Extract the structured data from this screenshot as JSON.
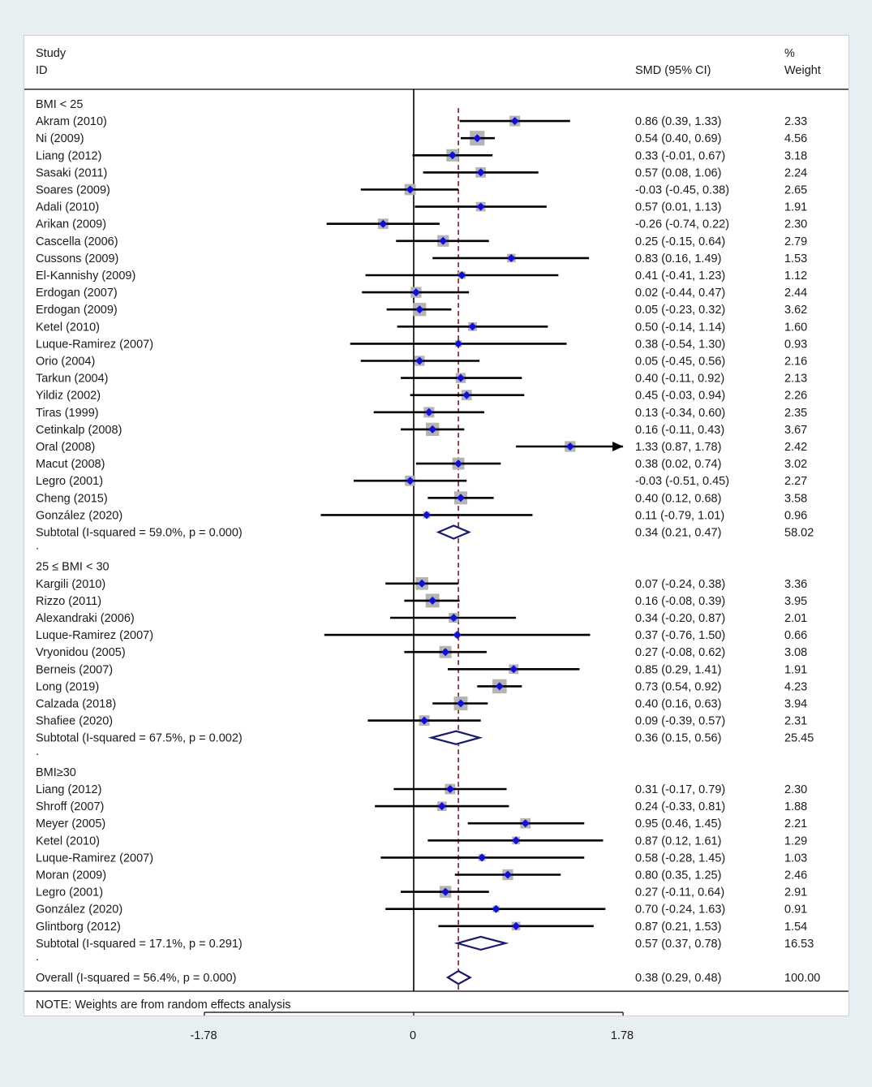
{
  "header": {
    "study_line1": "Study",
    "study_line2": "ID",
    "smd": "SMD (95% CI)",
    "weight_line1": "%",
    "weight_line2": "Weight"
  },
  "note": "NOTE: Weights are from random effects analysis",
  "colors": {
    "marker": "#1010d8",
    "box": "#b4b4b4",
    "diamond": "#1a1a6e",
    "reference": "#8b1a1a",
    "line": "#000000"
  },
  "chart_data": {
    "type": "forest",
    "measure": "SMD",
    "xlim": [
      -1.78,
      1.78
    ],
    "xticks": [
      -1.78,
      0,
      1.78
    ],
    "xtick_labels": [
      "-1.78",
      "0",
      "1.78"
    ],
    "overall_effect": 0.38,
    "groups": [
      {
        "label": "BMI  < 25",
        "studies": [
          {
            "name": "Akram (2010)",
            "est": 0.86,
            "lo": 0.39,
            "hi": 1.33,
            "text": "0.86 (0.39, 1.33)",
            "weight": "2.33"
          },
          {
            "name": "Ni (2009)",
            "est": 0.54,
            "lo": 0.4,
            "hi": 0.69,
            "text": "0.54 (0.40, 0.69)",
            "weight": "4.56"
          },
          {
            "name": "Liang (2012)",
            "est": 0.33,
            "lo": -0.01,
            "hi": 0.67,
            "text": "0.33 (-0.01, 0.67)",
            "weight": "3.18"
          },
          {
            "name": "Sasaki (2011)",
            "est": 0.57,
            "lo": 0.08,
            "hi": 1.06,
            "text": "0.57 (0.08, 1.06)",
            "weight": "2.24"
          },
          {
            "name": "Soares (2009)",
            "est": -0.03,
            "lo": -0.45,
            "hi": 0.38,
            "text": "-0.03 (-0.45, 0.38)",
            "weight": "2.65"
          },
          {
            "name": "Adali (2010)",
            "est": 0.57,
            "lo": 0.01,
            "hi": 1.13,
            "text": "0.57 (0.01, 1.13)",
            "weight": "1.91"
          },
          {
            "name": "Arikan (2009)",
            "est": -0.26,
            "lo": -0.74,
            "hi": 0.22,
            "text": "-0.26 (-0.74, 0.22)",
            "weight": "2.30"
          },
          {
            "name": "Cascella (2006)",
            "est": 0.25,
            "lo": -0.15,
            "hi": 0.64,
            "text": "0.25 (-0.15, 0.64)",
            "weight": "2.79"
          },
          {
            "name": "Cussons (2009)",
            "est": 0.83,
            "lo": 0.16,
            "hi": 1.49,
            "text": "0.83 (0.16, 1.49)",
            "weight": "1.53"
          },
          {
            "name": "El-Kannishy (2009)",
            "est": 0.41,
            "lo": -0.41,
            "hi": 1.23,
            "text": "0.41 (-0.41, 1.23)",
            "weight": "1.12"
          },
          {
            "name": "Erdogan (2007)",
            "est": 0.02,
            "lo": -0.44,
            "hi": 0.47,
            "text": "0.02 (-0.44, 0.47)",
            "weight": "2.44"
          },
          {
            "name": "Erdogan (2009)",
            "est": 0.05,
            "lo": -0.23,
            "hi": 0.32,
            "text": "0.05 (-0.23, 0.32)",
            "weight": "3.62"
          },
          {
            "name": "Ketel (2010)",
            "est": 0.5,
            "lo": -0.14,
            "hi": 1.14,
            "text": "0.50 (-0.14, 1.14)",
            "weight": "1.60"
          },
          {
            "name": "Luque-Ramirez (2007)",
            "est": 0.38,
            "lo": -0.54,
            "hi": 1.3,
            "text": "0.38 (-0.54, 1.30)",
            "weight": "0.93"
          },
          {
            "name": "Orio (2004)",
            "est": 0.05,
            "lo": -0.45,
            "hi": 0.56,
            "text": "0.05 (-0.45, 0.56)",
            "weight": "2.16"
          },
          {
            "name": "Tarkun (2004)",
            "est": 0.4,
            "lo": -0.11,
            "hi": 0.92,
            "text": "0.40 (-0.11, 0.92)",
            "weight": "2.13"
          },
          {
            "name": "Yildiz (2002)",
            "est": 0.45,
            "lo": -0.03,
            "hi": 0.94,
            "text": "0.45 (-0.03, 0.94)",
            "weight": "2.26"
          },
          {
            "name": "Tiras (1999)",
            "est": 0.13,
            "lo": -0.34,
            "hi": 0.6,
            "text": "0.13 (-0.34, 0.60)",
            "weight": "2.35"
          },
          {
            "name": "Cetinkalp (2008)",
            "est": 0.16,
            "lo": -0.11,
            "hi": 0.43,
            "text": "0.16 (-0.11, 0.43)",
            "weight": "3.67"
          },
          {
            "name": "Oral (2008)",
            "est": 1.33,
            "lo": 0.87,
            "hi": 1.78,
            "text": "1.33 (0.87, 1.78)",
            "weight": "2.42",
            "arrow": true
          },
          {
            "name": "Macut (2008)",
            "est": 0.38,
            "lo": 0.02,
            "hi": 0.74,
            "text": "0.38 (0.02, 0.74)",
            "weight": "3.02"
          },
          {
            "name": "Legro (2001)",
            "est": -0.03,
            "lo": -0.51,
            "hi": 0.45,
            "text": "-0.03 (-0.51, 0.45)",
            "weight": "2.27"
          },
          {
            "name": "Cheng (2015)",
            "est": 0.4,
            "lo": 0.12,
            "hi": 0.68,
            "text": "0.40 (0.12, 0.68)",
            "weight": "3.58"
          },
          {
            "name": "González (2020)",
            "est": 0.11,
            "lo": -0.79,
            "hi": 1.01,
            "text": "0.11 (-0.79, 1.01)",
            "weight": "0.96"
          }
        ],
        "subtotal": {
          "label": "Subtotal  (I-squared = 59.0%, p = 0.000)",
          "est": 0.34,
          "lo": 0.21,
          "hi": 0.47,
          "text": "0.34 (0.21, 0.47)",
          "weight": "58.02"
        }
      },
      {
        "label": "25 ≤ BMI  < 30",
        "studies": [
          {
            "name": "Kargili (2010)",
            "est": 0.07,
            "lo": -0.24,
            "hi": 0.38,
            "text": "0.07 (-0.24, 0.38)",
            "weight": "3.36"
          },
          {
            "name": "Rizzo (2011)",
            "est": 0.16,
            "lo": -0.08,
            "hi": 0.39,
            "text": "0.16 (-0.08, 0.39)",
            "weight": "3.95"
          },
          {
            "name": "Alexandraki (2006)",
            "est": 0.34,
            "lo": -0.2,
            "hi": 0.87,
            "text": "0.34 (-0.20, 0.87)",
            "weight": "2.01"
          },
          {
            "name": "Luque-Ramirez (2007)",
            "est": 0.37,
            "lo": -0.76,
            "hi": 1.5,
            "text": "0.37 (-0.76, 1.50)",
            "weight": "0.66"
          },
          {
            "name": "Vryonidou (2005)",
            "est": 0.27,
            "lo": -0.08,
            "hi": 0.62,
            "text": "0.27 (-0.08, 0.62)",
            "weight": "3.08"
          },
          {
            "name": "Berneis (2007)",
            "est": 0.85,
            "lo": 0.29,
            "hi": 1.41,
            "text": "0.85 (0.29, 1.41)",
            "weight": "1.91"
          },
          {
            "name": "Long (2019)",
            "est": 0.73,
            "lo": 0.54,
            "hi": 0.92,
            "text": "0.73 (0.54, 0.92)",
            "weight": "4.23"
          },
          {
            "name": "Calzada (2018)",
            "est": 0.4,
            "lo": 0.16,
            "hi": 0.63,
            "text": "0.40 (0.16, 0.63)",
            "weight": "3.94"
          },
          {
            "name": "Shafiee (2020)",
            "est": 0.09,
            "lo": -0.39,
            "hi": 0.57,
            "text": "0.09 (-0.39, 0.57)",
            "weight": "2.31"
          }
        ],
        "subtotal": {
          "label": "Subtotal  (I-squared = 67.5%, p = 0.002)",
          "est": 0.36,
          "lo": 0.15,
          "hi": 0.56,
          "text": "0.36 (0.15, 0.56)",
          "weight": "25.45"
        }
      },
      {
        "label": "BMI≥30",
        "studies": [
          {
            "name": "Liang (2012)",
            "est": 0.31,
            "lo": -0.17,
            "hi": 0.79,
            "text": "0.31 (-0.17, 0.79)",
            "weight": "2.30"
          },
          {
            "name": "Shroff (2007)",
            "est": 0.24,
            "lo": -0.33,
            "hi": 0.81,
            "text": "0.24 (-0.33, 0.81)",
            "weight": "1.88"
          },
          {
            "name": "Meyer (2005)",
            "est": 0.95,
            "lo": 0.46,
            "hi": 1.45,
            "text": "0.95 (0.46, 1.45)",
            "weight": "2.21"
          },
          {
            "name": "Ketel (2010)",
            "est": 0.87,
            "lo": 0.12,
            "hi": 1.61,
            "text": "0.87 (0.12, 1.61)",
            "weight": "1.29"
          },
          {
            "name": "Luque-Ramirez (2007)",
            "est": 0.58,
            "lo": -0.28,
            "hi": 1.45,
            "text": "0.58 (-0.28, 1.45)",
            "weight": "1.03"
          },
          {
            "name": "Moran (2009)",
            "est": 0.8,
            "lo": 0.35,
            "hi": 1.25,
            "text": "0.80 (0.35, 1.25)",
            "weight": "2.46"
          },
          {
            "name": "Legro (2001)",
            "est": 0.27,
            "lo": -0.11,
            "hi": 0.64,
            "text": "0.27 (-0.11, 0.64)",
            "weight": "2.91"
          },
          {
            "name": "González (2020)",
            "est": 0.7,
            "lo": -0.24,
            "hi": 1.63,
            "text": "0.70 (-0.24, 1.63)",
            "weight": "0.91"
          },
          {
            "name": "Glintborg (2012)",
            "est": 0.87,
            "lo": 0.21,
            "hi": 1.53,
            "text": "0.87 (0.21, 1.53)",
            "weight": "1.54"
          }
        ],
        "subtotal": {
          "label": "Subtotal  (I-squared = 17.1%, p = 0.291)",
          "est": 0.57,
          "lo": 0.37,
          "hi": 0.78,
          "text": "0.57 (0.37, 0.78)",
          "weight": "16.53"
        }
      }
    ],
    "overall": {
      "label": "Overall  (I-squared = 56.4%, p = 0.000)",
      "est": 0.38,
      "lo": 0.29,
      "hi": 0.48,
      "text": "0.38 (0.29, 0.48)",
      "weight": "100.00"
    },
    "separator": "."
  }
}
